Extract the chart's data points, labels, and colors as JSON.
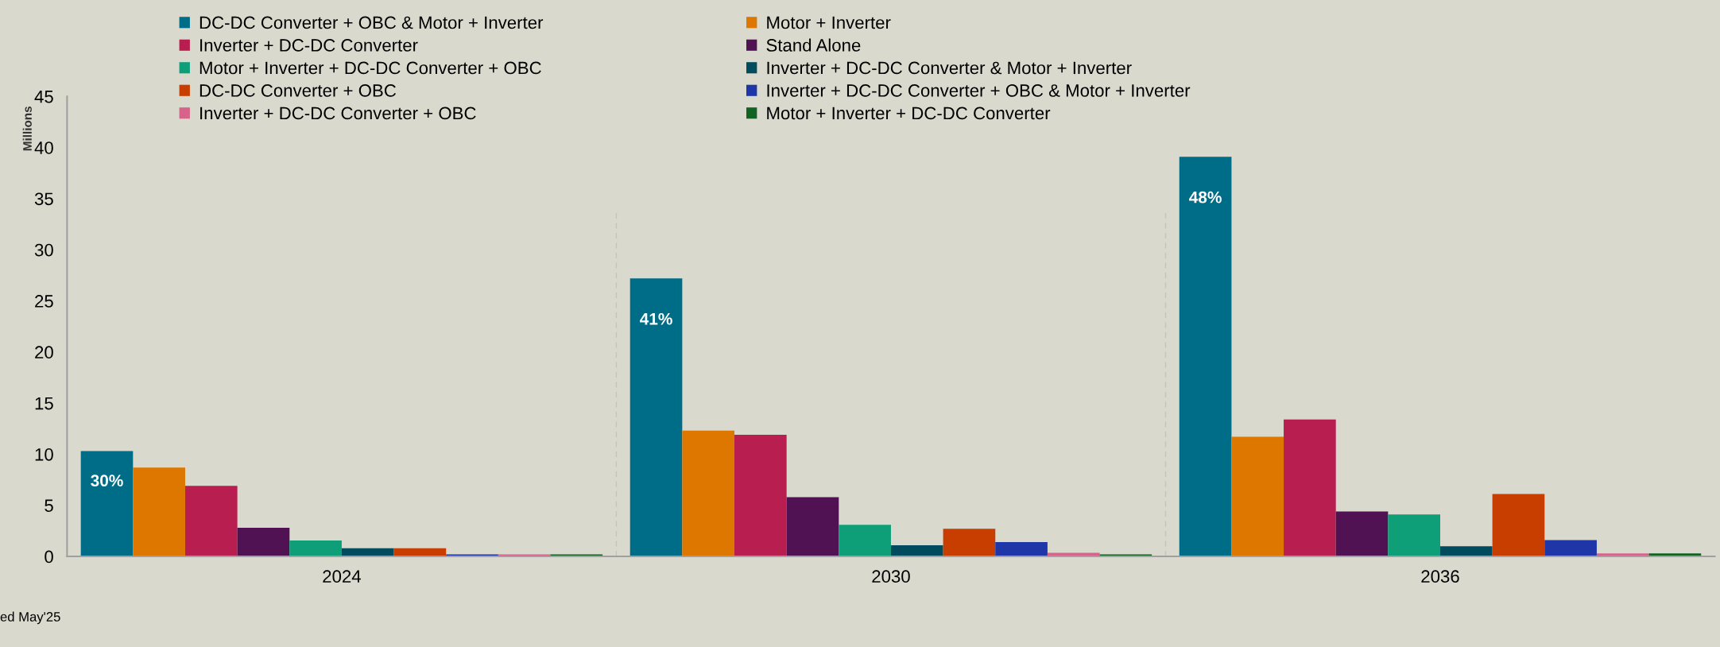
{
  "chart_data": {
    "type": "bar",
    "ylabel": "Millions",
    "categories": [
      "2024",
      "2030",
      "2036"
    ],
    "series": [
      {
        "name": "DC-DC Converter + OBC & Motor + Inverter",
        "color": "#006d88",
        "values": [
          10.3,
          27.2,
          39.1
        ]
      },
      {
        "name": "Motor + Inverter",
        "color": "#dd7700",
        "values": [
          8.7,
          12.3,
          11.7
        ]
      },
      {
        "name": "Inverter + DC-DC Converter",
        "color": "#b81e50",
        "values": [
          6.9,
          11.9,
          13.4
        ]
      },
      {
        "name": "Stand Alone",
        "color": "#501252",
        "values": [
          2.8,
          5.8,
          4.4
        ]
      },
      {
        "name": "Motor + Inverter + DC-DC Converter + OBC",
        "color": "#0e9e78",
        "values": [
          1.55,
          3.1,
          4.1
        ]
      },
      {
        "name": "Inverter + DC-DC Converter & Motor + Inverter",
        "color": "#004c5e",
        "values": [
          0.8,
          1.1,
          1.0
        ]
      },
      {
        "name": "DC-DC Converter + OBC",
        "color": "#c83e00",
        "values": [
          0.8,
          2.7,
          6.1
        ]
      },
      {
        "name": "Inverter + DC-DC Converter + OBC & Motor + Inverter",
        "color": "#1e36a8",
        "values": [
          0.2,
          1.4,
          1.6
        ]
      },
      {
        "name": "Inverter + DC-DC Converter + OBC",
        "color": "#d6648a",
        "values": [
          0.2,
          0.35,
          0.3
        ]
      },
      {
        "name": "Motor + Inverter + DC-DC Converter",
        "color": "#116322",
        "values": [
          0.2,
          0.2,
          0.3
        ]
      }
    ],
    "ylim": [
      0,
      45
    ],
    "yticks": [
      0,
      5,
      10,
      15,
      20,
      25,
      30,
      35,
      40,
      45
    ],
    "grid": false,
    "legend": "top",
    "annotations": [
      "30%",
      "41%",
      "48%",
      "ed May'25"
    ]
  }
}
